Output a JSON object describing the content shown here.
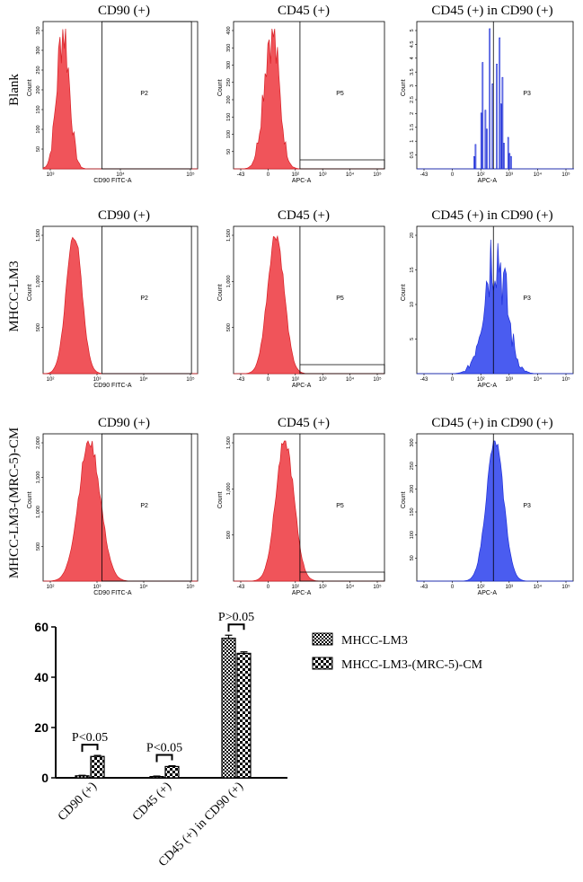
{
  "colors": {
    "red_fill": "#f0545a",
    "red_edge": "#d81e24",
    "blue_fill": "#4a5cf0",
    "blue_edge": "#1e2fd8",
    "gate": "#000000",
    "text": "#000000"
  },
  "column_titles": [
    "CD90 (+)",
    "CD45 (+)",
    "CD45 (+) in CD90 (+)"
  ],
  "row_labels": [
    "Blank",
    "MHCC-LM3",
    "MHCC-LM3-(MRC-5)-CM"
  ],
  "histogram_panels": [
    {
      "row": 0,
      "col": 0,
      "title": "CD90 (+)",
      "xlabel": "CD90 FITC-A",
      "ylabel": "Count",
      "gate": "P2",
      "color": "red",
      "xticks": [
        "10³",
        "10⁴",
        "10⁵"
      ],
      "yticks": [
        "50",
        "100",
        "150",
        "200",
        "250",
        "300",
        "350"
      ],
      "peak_x": 0.13,
      "spread": 0.04,
      "shape": "smooth-noisy"
    },
    {
      "row": 0,
      "col": 1,
      "title": "CD45 (+)",
      "xlabel": "APC-A",
      "ylabel": "Count",
      "gate": "P5",
      "color": "red",
      "xticks": [
        "-43",
        "0",
        "10²",
        "10³",
        "10⁴",
        "10⁵"
      ],
      "yticks": [
        "50",
        "100",
        "150",
        "200",
        "250",
        "300",
        "350",
        "400"
      ],
      "peak_x": 0.25,
      "spread": 0.05,
      "shape": "smooth-noisy"
    },
    {
      "row": 0,
      "col": 2,
      "title": "CD45 (+) in CD90 (+)",
      "xlabel": "APC-A",
      "ylabel": "Count",
      "gate": "P3",
      "color": "blue",
      "xticks": [
        "-43",
        "0",
        "10²",
        "10³",
        "10⁴",
        "10⁵"
      ],
      "yticks": [
        "0.5",
        "1",
        "1.5",
        "2",
        "2.5",
        "3",
        "3.5",
        "4",
        "4.5",
        "5"
      ],
      "peak_x": 0.48,
      "spread": 0.06,
      "shape": "sparse"
    },
    {
      "row": 1,
      "col": 0,
      "title": "CD90 (+)",
      "xlabel": "CD90 FITC-A",
      "ylabel": "Count",
      "gate": "P2",
      "color": "red",
      "xticks": [
        "10²",
        "10³",
        "10⁴",
        "10⁵"
      ],
      "yticks": [
        "500",
        "1,000",
        "1,500"
      ],
      "peak_x": 0.2,
      "spread": 0.05,
      "shape": "smooth"
    },
    {
      "row": 1,
      "col": 1,
      "title": "CD45 (+)",
      "xlabel": "APC-A",
      "ylabel": "Count",
      "gate": "P5",
      "color": "red",
      "xticks": [
        "-43",
        "0",
        "10²",
        "10³",
        "10⁴",
        "10⁵"
      ],
      "yticks": [
        "500",
        "1,000",
        "1,500"
      ],
      "peak_x": 0.28,
      "spread": 0.055,
      "shape": "smooth"
    },
    {
      "row": 1,
      "col": 2,
      "title": "CD45 (+) in CD90 (+)",
      "xlabel": "APC-A",
      "ylabel": "Count",
      "gate": "P3",
      "color": "blue",
      "xticks": [
        "-43",
        "0",
        "10²",
        "10³",
        "10⁴",
        "10⁵"
      ],
      "yticks": [
        "5",
        "10",
        "15",
        "20"
      ],
      "peak_x": 0.5,
      "spread": 0.07,
      "shape": "noisy"
    },
    {
      "row": 2,
      "col": 0,
      "title": "CD90 (+)",
      "xlabel": "CD90 FITC-A",
      "ylabel": "Count",
      "gate": "P2",
      "color": "red",
      "xticks": [
        "10²",
        "10³",
        "10⁴",
        "10⁵"
      ],
      "yticks": [
        "500",
        "1,000",
        "1,500",
        "2,000"
      ],
      "peak_x": 0.3,
      "spread": 0.07,
      "shape": "smooth"
    },
    {
      "row": 2,
      "col": 1,
      "title": "CD45 (+)",
      "xlabel": "APC-A",
      "ylabel": "Count",
      "gate": "P5",
      "color": "red",
      "xticks": [
        "-43",
        "0",
        "10²",
        "10³",
        "10⁴",
        "10⁵"
      ],
      "yticks": [
        "500",
        "1,000",
        "1,500"
      ],
      "peak_x": 0.34,
      "spread": 0.06,
      "shape": "smooth"
    },
    {
      "row": 2,
      "col": 2,
      "title": "CD45 (+) in CD90 (+)",
      "xlabel": "APC-A",
      "ylabel": "Count",
      "gate": "P3",
      "color": "blue",
      "xticks": [
        "-43",
        "0",
        "10²",
        "10³",
        "10⁴",
        "10⁵"
      ],
      "yticks": [
        "50",
        "100",
        "150",
        "200",
        "250",
        "300"
      ],
      "peak_x": 0.5,
      "spread": 0.055,
      "shape": "smooth"
    }
  ],
  "chart_data": {
    "type": "bar",
    "title": "",
    "xlabel": "",
    "ylabel": "",
    "ylim": [
      0,
      60
    ],
    "yticks": [
      0,
      20,
      40,
      60
    ],
    "categories": [
      "CD90 (+)",
      "CD45 (+)",
      "CD45 (+) in CD90 (+)"
    ],
    "series": [
      {
        "name": "MHCC-LM3",
        "values": [
          0.8,
          0.5,
          55.5
        ],
        "errors": [
          0.2,
          0.2,
          1.2
        ]
      },
      {
        "name": "MHCC-LM3-(MRC-5)-CM",
        "values": [
          8.5,
          4.5,
          49.5
        ],
        "errors": [
          0.4,
          0.3,
          0.6
        ]
      }
    ],
    "annotations": [
      "P<0.05",
      "P<0.05",
      "P>0.05"
    ],
    "legend_position": "top-right"
  }
}
